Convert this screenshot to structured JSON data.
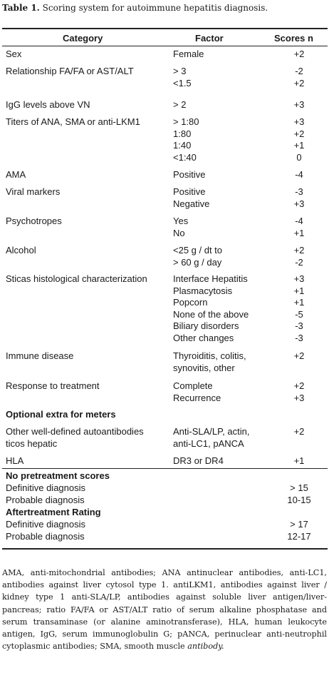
{
  "caption": {
    "label": "Table 1.",
    "text": " Scoring system for autoimmune hepatitis diagnosis."
  },
  "headers": {
    "category": "Category",
    "factor": "Factor",
    "scores": "Scores n"
  },
  "rows": [
    {
      "category": [
        "Sex"
      ],
      "factors": [
        "Female"
      ],
      "scores": [
        "+2"
      ]
    },
    {
      "category": [
        "Relationship FA/FA or AST/ALT"
      ],
      "factors": [
        "> 3",
        "<1.5"
      ],
      "scores": [
        "-2",
        "+2"
      ]
    },
    {
      "category": [
        "IgG levels above VN"
      ],
      "factors": [
        "> 2"
      ],
      "scores": [
        "+3"
      ]
    },
    {
      "category": [
        "Titers of ANA, SMA or anti-LKM1"
      ],
      "factors": [
        "> 1:80",
        "1:80",
        "1:40",
        "<1:40"
      ],
      "scores": [
        "+3",
        "+2",
        "+1",
        "0"
      ]
    },
    {
      "category": [
        "AMA"
      ],
      "factors": [
        "Positive"
      ],
      "scores": [
        "-4"
      ]
    },
    {
      "category": [
        "Viral markers"
      ],
      "factors": [
        "Positive",
        "Negative"
      ],
      "scores": [
        "-3",
        "+3"
      ]
    },
    {
      "category": [
        "Psychotropes"
      ],
      "factors": [
        "Yes",
        "No"
      ],
      "scores": [
        "-4",
        "+1"
      ]
    },
    {
      "category": [
        "Alcohol"
      ],
      "factors": [
        "<25 g / dt to",
        "> 60 g / day"
      ],
      "scores": [
        "+2",
        "-2"
      ]
    },
    {
      "category": [
        "Sticas histological characterization"
      ],
      "factors": [
        "Interface Hepatitis",
        "Plasmacytosis",
        "Popcorn",
        "None of the above",
        "Biliary disorders",
        "Other changes"
      ],
      "scores": [
        "+3",
        "+1",
        "+1",
        "-5",
        "-3",
        "-3"
      ]
    },
    {
      "category": [
        "Immune disease"
      ],
      "factors": [
        "Thyroiditis, colitis,",
        "synovitis, other"
      ],
      "scores": [
        "+2"
      ]
    },
    {
      "category": [
        "Response to treatment"
      ],
      "factors": [
        "Complete",
        "Recurrence"
      ],
      "scores": [
        "+2",
        "+3"
      ]
    },
    {
      "category": [
        "Other well-defined autoantibodies",
        "ticos hepatic"
      ],
      "factors": [
        "Anti-SLA/LP, actin,",
        "anti-LC1, pANCA"
      ],
      "scores": [
        "+2"
      ]
    },
    {
      "category": [
        "HLA"
      ],
      "factors": [
        "DR3 or DR4"
      ],
      "scores": [
        "+1"
      ]
    }
  ],
  "optional_heading": "Optional extra for meters",
  "pre_heading": "No pretreatment scores",
  "pre_rows": [
    {
      "label": "Definitive diagnosis",
      "score": "> 15"
    },
    {
      "label": "Probable diagnosis",
      "score": "10-15"
    }
  ],
  "after_heading": "Aftertreatment Rating",
  "after_rows": [
    {
      "label": "Definitive diagnosis",
      "score": "> 17"
    },
    {
      "label": "Probable diagnosis",
      "score": "12-17"
    }
  ],
  "footnote": {
    "text": "AMA, anti-mitochondrial antibodies; ANA antinuclear antibodies, anti-LC1, antibodies against liver cytosol type 1. antiLKM1, antibodies against liver / kidney type 1 anti-SLA/LP, antibodies against soluble liver antigen/liver-pancreas; ratio FA/FA or AST/ALT ratio of serum alkaline phosphatase and serum transaminase (or alanine aminotransferase), HLA, human leukocyte antigen, IgG, serum immunoglobulin G; pANCA, perinuclear anti-neutrophil cytoplasmic antibodies; SMA, smooth muscle ",
    "italic_tail": "antibody."
  }
}
